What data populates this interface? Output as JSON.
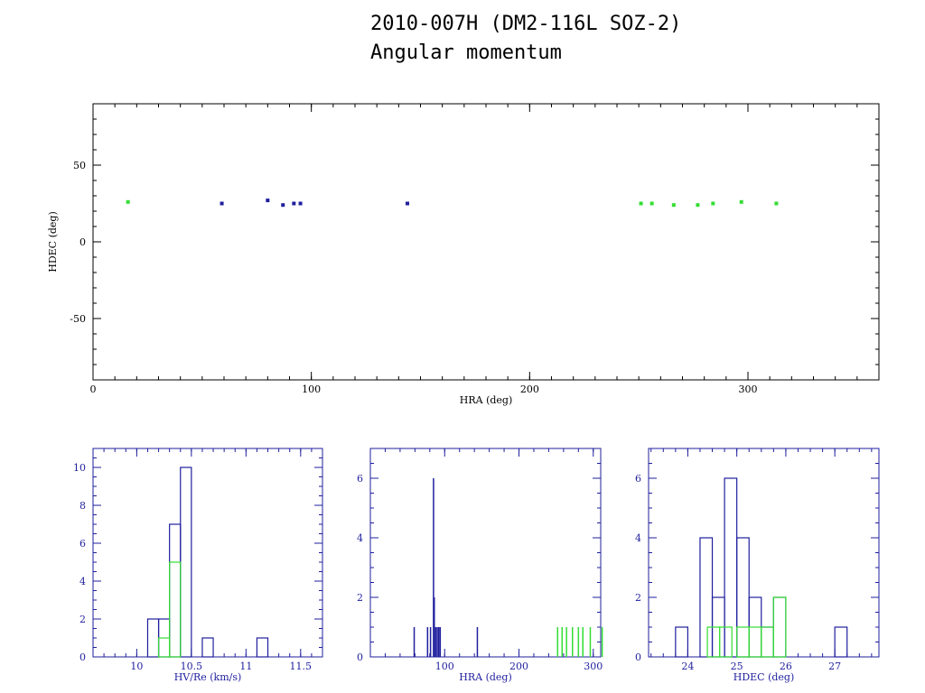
{
  "title": "2010-007H (DM2-116L SOZ-2)",
  "subtitle": "Angular momentum",
  "colors": {
    "blue": "#1f1f9e",
    "green": "#33dd33",
    "axis": "#000000",
    "histaxis": "#1f1f9e"
  },
  "chart_data": [
    {
      "type": "scatter",
      "xlabel": "HRA (deg)",
      "ylabel": "HDEC (deg)",
      "xlim": [
        0,
        360
      ],
      "ylim": [
        -90,
        90
      ],
      "xticks": [
        0,
        100,
        200,
        300
      ],
      "yticks": [
        -50,
        0,
        50
      ],
      "series": [
        {
          "color": "green",
          "points": [
            [
              16,
              26
            ],
            [
              251,
              25
            ],
            [
              256,
              25
            ],
            [
              266,
              24
            ],
            [
              277,
              24
            ],
            [
              284,
              25
            ],
            [
              297,
              26
            ],
            [
              313,
              25
            ]
          ]
        },
        {
          "color": "blue",
          "points": [
            [
              59,
              25
            ],
            [
              80,
              27
            ],
            [
              87,
              24
            ],
            [
              92,
              25
            ],
            [
              95,
              25
            ],
            [
              144,
              25
            ]
          ]
        }
      ]
    },
    {
      "type": "bar",
      "xlabel": "HV/Re (km/s)",
      "xlim": [
        9.6,
        11.7
      ],
      "ylim": [
        0,
        11
      ],
      "xticks": [
        10,
        10.5,
        11,
        11.5
      ],
      "yticks": [
        0,
        2,
        4,
        6,
        8,
        10
      ],
      "bin_width": 0.1,
      "series": [
        {
          "color": "blue",
          "bins": [
            [
              10.1,
              2
            ],
            [
              10.2,
              2
            ],
            [
              10.3,
              7
            ],
            [
              10.4,
              10
            ],
            [
              10.6,
              1
            ],
            [
              11.1,
              1
            ]
          ]
        },
        {
          "color": "green",
          "bins": [
            [
              10.2,
              1
            ],
            [
              10.3,
              5
            ]
          ]
        }
      ]
    },
    {
      "type": "bar",
      "xlabel": "HRA (deg)",
      "xlim": [
        0,
        310
      ],
      "ylim": [
        0,
        7
      ],
      "xticks": [
        100,
        200,
        300
      ],
      "yticks": [
        0,
        2,
        4,
        6
      ],
      "series": [
        {
          "color": "blue",
          "spikes": [
            [
              59,
              1
            ],
            [
              77,
              1
            ],
            [
              81,
              1
            ],
            [
              85,
              6
            ],
            [
              86,
              2
            ],
            [
              88,
              1
            ],
            [
              90,
              1
            ],
            [
              92,
              1
            ],
            [
              94,
              1
            ],
            [
              144,
              1
            ]
          ]
        },
        {
          "color": "green",
          "spikes": [
            [
              252,
              1
            ],
            [
              258,
              1
            ],
            [
              264,
              1
            ],
            [
              272,
              1
            ],
            [
              280,
              1
            ],
            [
              286,
              1
            ],
            [
              296,
              1
            ],
            [
              312,
              1
            ]
          ]
        }
      ]
    },
    {
      "type": "bar",
      "xlabel": "HDEC (deg)",
      "xlim": [
        23.2,
        27.9
      ],
      "ylim": [
        0,
        7
      ],
      "xticks": [
        24,
        25,
        26,
        27
      ],
      "yticks": [
        0,
        2,
        4,
        6
      ],
      "bin_width": 0.25,
      "series": [
        {
          "color": "blue",
          "bins": [
            [
              23.75,
              1
            ],
            [
              24.25,
              4
            ],
            [
              24.5,
              2
            ],
            [
              24.75,
              6
            ],
            [
              25.0,
              4
            ],
            [
              25.25,
              2
            ],
            [
              25.5,
              1
            ],
            [
              25.75,
              2
            ],
            [
              27.0,
              1
            ]
          ]
        },
        {
          "color": "green",
          "bins": [
            [
              24.4,
              1
            ],
            [
              24.65,
              1
            ],
            [
              25.0,
              1
            ],
            [
              25.25,
              1
            ],
            [
              25.5,
              1
            ],
            [
              25.75,
              2
            ]
          ]
        }
      ]
    }
  ]
}
